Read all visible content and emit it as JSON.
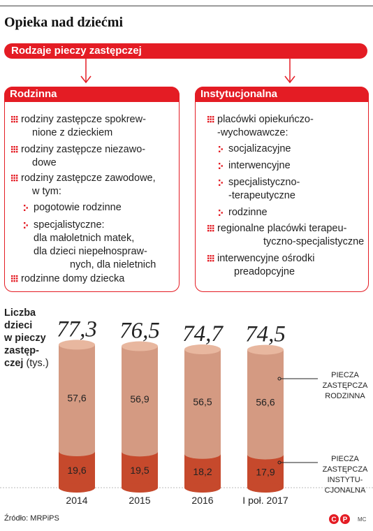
{
  "title": "Opieka nad dziećmi",
  "header_bar": "Rodzaje pieczy zastępczej",
  "left_box": {
    "title": "Rodzinna",
    "items": [
      {
        "lines": [
          "rodziny zastępcze spokrew-",
          "nione z dzieckiem"
        ]
      },
      {
        "lines": [
          "rodziny zastępcze niezawo-",
          "dowe"
        ]
      },
      {
        "lines": [
          "rodziny zastępcze zawodowe,",
          "w tym:"
        ]
      },
      {
        "lines": [
          "pogotowie rodzinne"
        ]
      },
      {
        "lines": [
          "specjalistyczne:",
          "dla małoletnich matek,",
          "dla dzieci niepełnospraw-",
          "nych, dla nieletnich"
        ]
      },
      {
        "lines": [
          "rodzinne domy dziecka"
        ]
      }
    ]
  },
  "right_box": {
    "title": "Instytucjonalna",
    "items": [
      {
        "lines": [
          "placówki opiekuńczo-",
          "-wychowawcze:"
        ]
      },
      {
        "lines": [
          "socjalizacyjne"
        ]
      },
      {
        "lines": [
          "interwencyjne"
        ]
      },
      {
        "lines": [
          "specjalistyczno-",
          "-terapeutyczne"
        ]
      },
      {
        "lines": [
          "rodzinne"
        ]
      },
      {
        "lines": [
          "regionalne placówki terapeu-",
          "tyczno-specjalistyczne"
        ]
      },
      {
        "lines": [
          "interwencyjne ośrodki",
          "preadopcyjne"
        ]
      }
    ]
  },
  "chart_label": {
    "lines": [
      "Liczba",
      "dzieci",
      "w pieczy",
      "zastęp-"
    ],
    "last_bold": "czej",
    "unit": "(tys.)"
  },
  "source": "Źródło: MRPiPS",
  "credit": "MC",
  "colors": {
    "red": "#e41c24",
    "family_top": "#e8b79f",
    "family_body": "#d49a82",
    "institutional": "#c6492c"
  },
  "chart_data": {
    "type": "bar",
    "stacked": true,
    "categories": [
      "2014",
      "2015",
      "2016",
      "I poł. 2017"
    ],
    "totals": [
      "77,3",
      "76,5",
      "74,7",
      "74,5"
    ],
    "series": [
      {
        "name": "PIECZA ZASTĘPCZA RODZINNA",
        "name_lines": [
          "PIECZA",
          "ZASTĘPCZA",
          "RODZINNA"
        ],
        "values": [
          57.6,
          56.9,
          56.5,
          56.6
        ],
        "labels": [
          "57,6",
          "56,9",
          "56,5",
          "56,6"
        ]
      },
      {
        "name": "PIECZA ZASTĘPCZA INSTYTUCJONALNA",
        "name_lines": [
          "PIECZA",
          "ZASTĘPCZA",
          "INSTYTU-",
          "CJONALNA"
        ],
        "values": [
          19.6,
          19.5,
          18.2,
          17.9
        ],
        "labels": [
          "19,6",
          "19,5",
          "18,2",
          "17,9"
        ]
      }
    ]
  }
}
